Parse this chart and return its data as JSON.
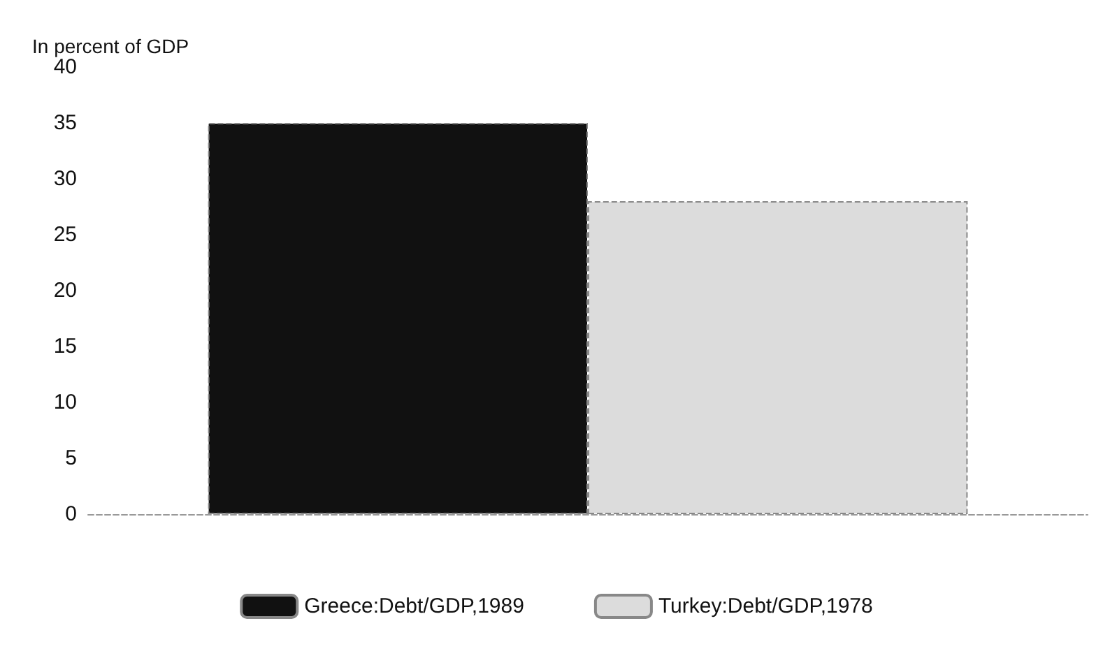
{
  "chart_data": {
    "type": "bar",
    "ylabel": "In percent of GDP",
    "categories": [
      null
    ],
    "series": [
      {
        "name": "Greece:Debt/GDP,1989",
        "color": "#111111",
        "values": [
          35
        ]
      },
      {
        "name": "Turkey:Debt/GDP,1978",
        "color": "#dcdcdc",
        "values": [
          28
        ]
      }
    ],
    "ylim": [
      0,
      40
    ],
    "yticks": [
      0,
      5,
      10,
      15,
      20,
      25,
      30,
      35,
      40
    ],
    "grid": false,
    "legend": "bottom"
  }
}
